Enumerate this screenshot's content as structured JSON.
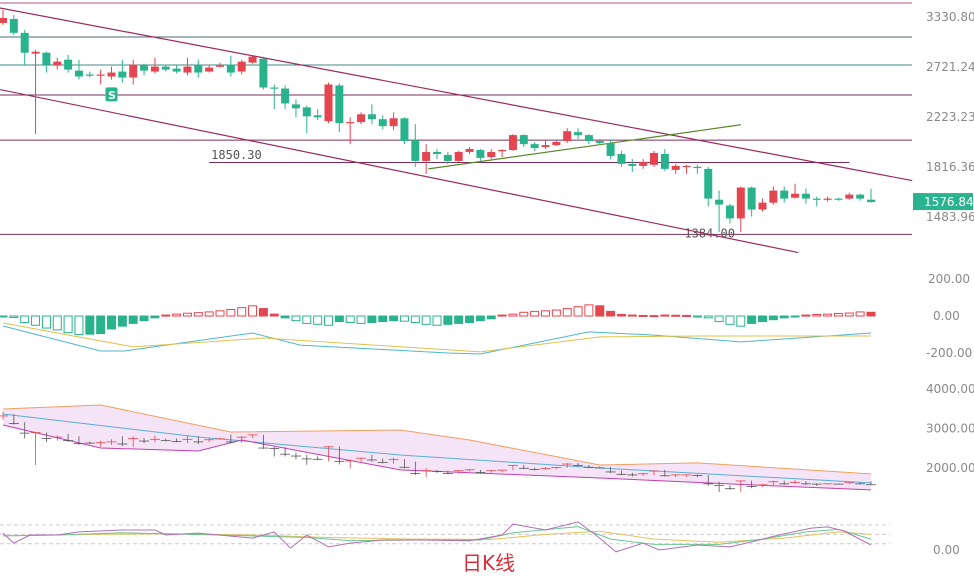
{
  "chart_data": [
    {
      "type": "candlestick",
      "panel": "price",
      "y_scale": "log",
      "y_ticks": [
        "3330.80",
        "2721.24",
        "2223.23",
        "1816.36",
        "1483.96"
      ],
      "current_price": "1576.84",
      "colors": {
        "up": "#e5454f",
        "down": "#29b38d",
        "price_tag": "#2bb28e",
        "trend": "#9b2a5e",
        "support_trend": "#5a8a2a"
      },
      "ohlc": [
        [
          3252,
          3426,
          3226,
          3318
        ],
        [
          3304,
          3358,
          3099,
          3124
        ],
        [
          3124,
          3162,
          2748,
          2883
        ],
        [
          2872,
          2918,
          2075,
          2895
        ],
        [
          2883,
          2895,
          2661,
          2748
        ],
        [
          2737,
          2826,
          2693,
          2781
        ],
        [
          2803,
          2860,
          2661,
          2693
        ],
        [
          2682,
          2803,
          2587,
          2619
        ],
        [
          2640,
          2672,
          2608,
          2630
        ],
        [
          2630,
          2693,
          2536,
          2640
        ],
        [
          2619,
          2726,
          2587,
          2661
        ],
        [
          2672,
          2803,
          2556,
          2608
        ],
        [
          2608,
          2803,
          2536,
          2748
        ],
        [
          2737,
          2759,
          2630,
          2682
        ],
        [
          2672,
          2826,
          2651,
          2726
        ],
        [
          2726,
          2748,
          2672,
          2693
        ],
        [
          2704,
          2748,
          2651,
          2672
        ],
        [
          2661,
          2826,
          2630,
          2726
        ],
        [
          2737,
          2803,
          2608,
          2661
        ],
        [
          2672,
          2748,
          2661,
          2715
        ],
        [
          2726,
          2770,
          2715,
          2737
        ],
        [
          2748,
          2849,
          2619,
          2661
        ],
        [
          2672,
          2803,
          2640,
          2781
        ],
        [
          2770,
          2849,
          2759,
          2838
        ],
        [
          2815,
          2838,
          2485,
          2505
        ],
        [
          2505,
          2536,
          2294,
          2495
        ],
        [
          2495,
          2526,
          2294,
          2349
        ],
        [
          2340,
          2388,
          2221,
          2303
        ],
        [
          2312,
          2331,
          2082,
          2230
        ],
        [
          2239,
          2294,
          2195,
          2221
        ],
        [
          2186,
          2556,
          2169,
          2536
        ],
        [
          2526,
          2546,
          2092,
          2169
        ],
        [
          2169,
          2221,
          1993,
          2178
        ],
        [
          2178,
          2266,
          2160,
          2248
        ],
        [
          2248,
          2340,
          2160,
          2204
        ],
        [
          2204,
          2239,
          2117,
          2143
        ],
        [
          2143,
          2266,
          2109,
          2212
        ],
        [
          2212,
          2221,
          1993,
          2018
        ],
        [
          2026,
          2160,
          1818,
          1862
        ],
        [
          1862,
          1993,
          1768,
          1931
        ],
        [
          1931,
          1954,
          1877,
          1915
        ],
        [
          1908,
          1931,
          1840,
          1862
        ],
        [
          1862,
          1939,
          1855,
          1931
        ],
        [
          1931,
          1970,
          1915,
          1954
        ],
        [
          1946,
          1954,
          1862,
          1885
        ],
        [
          1892,
          1954,
          1877,
          1931
        ],
        [
          1939,
          1954,
          1892,
          1946
        ],
        [
          1946,
          2075,
          1939,
          2067
        ],
        [
          2067,
          2075,
          1970,
          1993
        ],
        [
          1993,
          2010,
          1939,
          1962
        ],
        [
          1970,
          2026,
          1954,
          1985
        ],
        [
          1985,
          2018,
          1977,
          2010
        ],
        [
          2018,
          2126,
          2002,
          2100
        ],
        [
          2092,
          2126,
          2034,
          2067
        ],
        [
          2067,
          2075,
          1993,
          2018
        ],
        [
          2018,
          2034,
          1993,
          2002
        ],
        [
          2002,
          2026,
          1877,
          1900
        ],
        [
          1915,
          1939,
          1818,
          1840
        ],
        [
          1840,
          1877,
          1782,
          1825
        ],
        [
          1825,
          1877,
          1803,
          1855
        ],
        [
          1833,
          1939,
          1818,
          1923
        ],
        [
          1915,
          1954,
          1789,
          1803
        ],
        [
          1796,
          1840,
          1768,
          1825
        ],
        [
          1818,
          1833,
          1768,
          1825
        ],
        [
          1818,
          1833,
          1768,
          1811
        ],
        [
          1803,
          1818,
          1549,
          1599
        ],
        [
          1592,
          1652,
          1397,
          1561
        ],
        [
          1555,
          1567,
          1446,
          1476
        ],
        [
          1476,
          1679,
          1397,
          1672
        ],
        [
          1672,
          1679,
          1488,
          1530
        ],
        [
          1530,
          1599,
          1518,
          1573
        ],
        [
          1573,
          1679,
          1561,
          1652
        ],
        [
          1652,
          1679,
          1573,
          1599
        ],
        [
          1605,
          1698,
          1599,
          1631
        ],
        [
          1631,
          1665,
          1567,
          1599
        ],
        [
          1599,
          1612,
          1549,
          1592
        ],
        [
          1592,
          1612,
          1580,
          1599
        ],
        [
          1599,
          1605,
          1586,
          1592
        ],
        [
          1599,
          1638,
          1592,
          1625
        ],
        [
          1625,
          1631,
          1586,
          1599
        ],
        [
          1592,
          1665,
          1573,
          1576.84
        ]
      ],
      "horizontal_levels": [
        {
          "price": 3525,
          "color": "#b4568a"
        },
        {
          "price": 3072,
          "color": "#4a6a78"
        },
        {
          "price": 2743,
          "color": "#3f8a8a"
        },
        {
          "price": 2430,
          "color": "#7a2d5c"
        },
        {
          "price": 2025,
          "color": "#7a2d5c"
        },
        {
          "price": 1850.3,
          "label": "1850.30",
          "color": "#7a2d5c",
          "from": 19,
          "to": 78
        },
        {
          "price": 1384.0,
          "label": "1384.00",
          "color": "#7a2d5c"
        }
      ],
      "trendlines": [
        {
          "points": [
            [
              -0.3,
              3455
            ],
            [
              83.8,
              1720
            ]
          ],
          "color": "#9b2a5e"
        },
        {
          "points": [
            [
              -0.3,
              2485
            ],
            [
              73.3,
              1286
            ]
          ],
          "color": "#9b2a5e"
        },
        {
          "points": [
            [
              39.2,
              1803
            ],
            [
              68,
              2155
            ]
          ],
          "color": "#5a8a2a"
        }
      ],
      "marker": {
        "index": 10,
        "price": 2436,
        "text": "S"
      }
    },
    {
      "type": "macd",
      "panel": "macd",
      "y_ticks": [
        {
          "v": 200,
          "label": "200.00"
        },
        {
          "v": 0,
          "label": "0.00"
        },
        {
          "v": -200,
          "label": "-200.00"
        }
      ],
      "histogram": [
        -3,
        -8,
        -35,
        -50,
        -65,
        -75,
        -90,
        -100,
        -98,
        -95,
        -70,
        -55,
        -40,
        -25,
        -10,
        5,
        10,
        15,
        18,
        22,
        28,
        35,
        45,
        55,
        40,
        10,
        -10,
        -25,
        -40,
        -45,
        -50,
        -30,
        -35,
        -40,
        -35,
        -30,
        -25,
        -28,
        -35,
        -45,
        -50,
        -45,
        -40,
        -35,
        -25,
        -15,
        5,
        10,
        20,
        25,
        28,
        32,
        40,
        50,
        60,
        55,
        25,
        8,
        5,
        3,
        2,
        5,
        4,
        3,
        -5,
        -10,
        -30,
        -45,
        -55,
        -40,
        -30,
        -20,
        -10,
        -3,
        5,
        8,
        10,
        14,
        16,
        22,
        20
      ],
      "dif": [
        [
          0,
          -54
        ],
        [
          9,
          -189
        ],
        [
          11.2,
          -189
        ],
        [
          23,
          -92
        ],
        [
          27.4,
          -157
        ],
        [
          41,
          -200
        ],
        [
          44,
          -205
        ],
        [
          54,
          -86
        ],
        [
          60,
          -103
        ],
        [
          68,
          -140
        ],
        [
          80,
          -92
        ]
      ],
      "dea": [
        [
          0,
          -38
        ],
        [
          12,
          -167
        ],
        [
          24,
          -119
        ],
        [
          38.4,
          -173
        ],
        [
          44,
          -194
        ],
        [
          55,
          -113
        ],
        [
          64,
          -108
        ],
        [
          80,
          -108
        ]
      ],
      "colors": {
        "dif": "#4fb8c8",
        "dea": "#e0c250"
      }
    },
    {
      "type": "bollinger",
      "panel": "boll",
      "y_ticks": [
        {
          "v": 4000,
          "label": "4000.00"
        },
        {
          "v": 3000,
          "label": "3000.00"
        },
        {
          "v": 2000,
          "label": "2000.00"
        }
      ],
      "upper": [
        [
          0,
          3494
        ],
        [
          9,
          3595
        ],
        [
          21,
          2912
        ],
        [
          36.6,
          2963
        ],
        [
          43,
          2710
        ],
        [
          55,
          2077
        ],
        [
          64,
          2128
        ],
        [
          80,
          1850
        ]
      ],
      "middle": [
        [
          0,
          3367
        ],
        [
          18,
          2786
        ],
        [
          36.6,
          2330
        ],
        [
          55,
          2001
        ],
        [
          80,
          1622
        ]
      ],
      "lower": [
        [
          0,
          3089
        ],
        [
          9,
          2507
        ],
        [
          18,
          2431
        ],
        [
          22,
          2710
        ],
        [
          36.6,
          1951
        ],
        [
          55,
          1748
        ],
        [
          69,
          1571
        ],
        [
          80,
          1445
        ]
      ],
      "colors": {
        "upper": "#f0a060",
        "middle": "#5ab0d0",
        "lower": "#c040b0",
        "fill": "#f3dcf5"
      }
    },
    {
      "type": "kdj",
      "panel": "kdj",
      "y_ticks": [
        {
          "v": 0,
          "label": "0.00"
        }
      ],
      "guides": [
        20,
        50,
        80
      ],
      "k": [
        [
          0,
          45
        ],
        [
          5,
          48
        ],
        [
          11,
          55
        ],
        [
          15,
          52
        ],
        [
          23,
          45
        ],
        [
          28,
          40
        ],
        [
          32,
          30
        ],
        [
          38,
          32
        ],
        [
          44,
          32
        ],
        [
          47,
          55
        ],
        [
          53,
          75
        ],
        [
          56,
          35
        ],
        [
          60,
          18
        ],
        [
          66,
          18
        ],
        [
          70,
          35
        ],
        [
          74,
          58
        ],
        [
          77,
          66
        ],
        [
          80,
          35
        ]
      ],
      "d": [
        [
          0,
          45
        ],
        [
          8,
          50
        ],
        [
          15,
          52
        ],
        [
          23,
          48
        ],
        [
          30,
          40
        ],
        [
          38,
          35
        ],
        [
          45,
          34
        ],
        [
          50,
          50
        ],
        [
          55,
          60
        ],
        [
          60,
          35
        ],
        [
          66,
          25
        ],
        [
          72,
          38
        ],
        [
          77,
          58
        ],
        [
          80,
          50
        ]
      ],
      "j": [
        [
          0,
          54
        ],
        [
          1,
          22
        ],
        [
          2.5,
          48
        ],
        [
          5,
          48
        ],
        [
          7,
          58
        ],
        [
          11,
          64
        ],
        [
          14,
          64
        ],
        [
          15,
          48
        ],
        [
          18,
          54
        ],
        [
          23,
          38
        ],
        [
          25,
          58
        ],
        [
          26.5,
          6
        ],
        [
          28,
          48
        ],
        [
          30,
          10
        ],
        [
          32,
          22
        ],
        [
          35,
          32
        ],
        [
          38.5,
          32
        ],
        [
          43,
          29
        ],
        [
          46,
          48
        ],
        [
          47,
          83
        ],
        [
          50,
          64
        ],
        [
          53,
          90
        ],
        [
          55,
          38
        ],
        [
          56.5,
          -6
        ],
        [
          59,
          22
        ],
        [
          60.5,
          0
        ],
        [
          64,
          16
        ],
        [
          67,
          10
        ],
        [
          69,
          26
        ],
        [
          71.5,
          48
        ],
        [
          74.5,
          70
        ],
        [
          76,
          74
        ],
        [
          77.5,
          61
        ],
        [
          80,
          16
        ]
      ],
      "colors": {
        "k": "#6cc890",
        "d": "#e6c060",
        "j": "#b070b8"
      }
    }
  ],
  "period_label": "日K线"
}
